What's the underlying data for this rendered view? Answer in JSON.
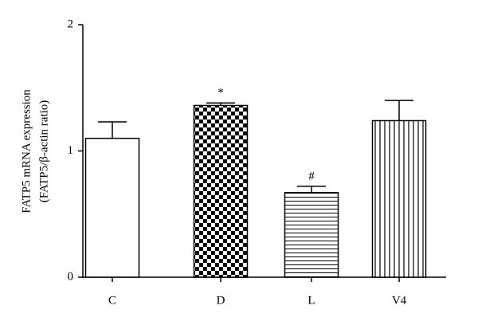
{
  "chart_data": {
    "type": "bar",
    "ylabel": [
      "FATP5 mRNA expression",
      "(FATP5/β-actin ratio)"
    ],
    "categories": [
      "C",
      "D",
      "L",
      "V4"
    ],
    "values": [
      1.1,
      1.36,
      0.67,
      1.24
    ],
    "errors": [
      0.13,
      0.02,
      0.05,
      0.16
    ],
    "annotations": [
      null,
      "*",
      "#",
      null
    ],
    "patterns": [
      "none",
      "checker",
      "hlines",
      "vlines"
    ],
    "color": "#000000",
    "ylim": [
      0,
      2
    ],
    "yticks": [
      0,
      1,
      2
    ]
  }
}
